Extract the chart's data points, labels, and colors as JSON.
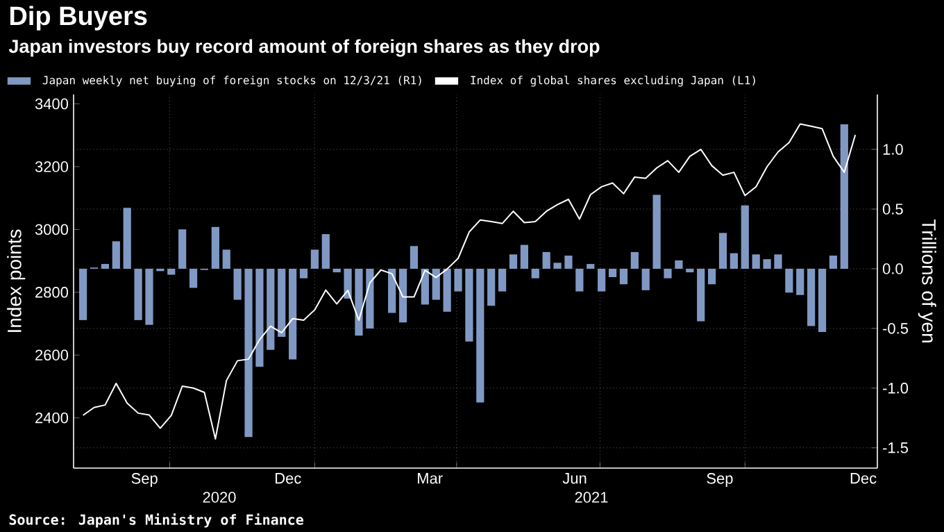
{
  "chart_data": {
    "type": "bar",
    "title": "Dip Buyers",
    "subtitle": "Japan investors buy record amount of foreign shares as they drop",
    "ylabel": "Index points",
    "y2label": "Trillions of yen",
    "x": [
      "2020-08-07",
      "2020-08-14",
      "2020-08-21",
      "2020-08-28",
      "2020-09-04",
      "2020-09-11",
      "2020-09-18",
      "2020-09-25",
      "2020-10-02",
      "2020-10-09",
      "2020-10-16",
      "2020-10-23",
      "2020-10-30",
      "2020-11-06",
      "2020-11-13",
      "2020-11-20",
      "2020-11-27",
      "2020-12-04",
      "2020-12-11",
      "2020-12-18",
      "2020-12-25",
      "2021-01-01",
      "2021-01-08",
      "2021-01-15",
      "2021-01-22",
      "2021-01-29",
      "2021-02-05",
      "2021-02-12",
      "2021-02-19",
      "2021-02-26",
      "2021-03-05",
      "2021-03-12",
      "2021-03-19",
      "2021-03-26",
      "2021-04-02",
      "2021-04-09",
      "2021-04-16",
      "2021-04-23",
      "2021-04-30",
      "2021-05-07",
      "2021-05-14",
      "2021-05-21",
      "2021-05-28",
      "2021-06-04",
      "2021-06-11",
      "2021-06-18",
      "2021-06-25",
      "2021-07-02",
      "2021-07-09",
      "2021-07-16",
      "2021-07-23",
      "2021-07-30",
      "2021-08-06",
      "2021-08-13",
      "2021-08-20",
      "2021-08-27",
      "2021-09-03",
      "2021-09-10",
      "2021-09-17",
      "2021-09-24",
      "2021-10-01",
      "2021-10-08",
      "2021-10-15",
      "2021-10-22",
      "2021-10-29",
      "2021-11-05",
      "2021-11-12",
      "2021-11-19",
      "2021-11-26",
      "2021-12-03"
    ],
    "series": [
      {
        "name": "Japan weekly net buying of foreign stocks on 12/3/21 (R1)",
        "axis": "y2",
        "color": "#8099c4",
        "values": [
          -0.43,
          0.01,
          0.04,
          0.23,
          0.51,
          -0.43,
          -0.47,
          -0.02,
          -0.05,
          0.33,
          -0.16,
          -0.01,
          0.35,
          0.16,
          -0.26,
          -1.41,
          -0.82,
          -0.68,
          -0.57,
          -0.76,
          -0.08,
          0.16,
          0.29,
          -0.03,
          -0.25,
          -0.56,
          -0.5,
          0.0,
          -0.37,
          -0.45,
          0.19,
          -0.3,
          -0.26,
          -0.36,
          -0.19,
          -0.61,
          -1.12,
          -0.31,
          -0.19,
          0.12,
          0.2,
          -0.08,
          0.14,
          0.05,
          0.11,
          -0.19,
          0.04,
          -0.19,
          -0.07,
          -0.13,
          0.14,
          -0.18,
          0.62,
          -0.08,
          0.07,
          -0.03,
          -0.44,
          -0.13,
          0.3,
          0.13,
          0.53,
          0.12,
          0.08,
          0.12,
          -0.2,
          -0.22,
          -0.48,
          -0.53,
          0.11,
          1.21
        ]
      },
      {
        "name": "Index of global shares excluding Japan (L1)",
        "type": "line",
        "color": "#ffffff",
        "x": [
          "2020-08-07",
          "2020-08-14",
          "2020-08-21",
          "2020-08-28",
          "2020-09-04",
          "2020-09-11",
          "2020-09-18",
          "2020-09-25",
          "2020-10-02",
          "2020-10-09",
          "2020-10-16",
          "2020-10-23",
          "2020-10-30",
          "2020-11-06",
          "2020-11-13",
          "2020-11-20",
          "2020-11-27",
          "2020-12-04",
          "2020-12-11",
          "2020-12-18",
          "2020-12-25",
          "2021-01-01",
          "2021-01-08",
          "2021-01-15",
          "2021-01-22",
          "2021-01-29",
          "2021-02-05",
          "2021-02-12",
          "2021-02-19",
          "2021-02-26",
          "2021-03-05",
          "2021-03-12",
          "2021-03-19",
          "2021-03-26",
          "2021-04-02",
          "2021-04-09",
          "2021-04-16",
          "2021-04-23",
          "2021-04-30",
          "2021-05-07",
          "2021-05-14",
          "2021-05-21",
          "2021-05-28",
          "2021-06-04",
          "2021-06-11",
          "2021-06-18",
          "2021-06-25",
          "2021-07-02",
          "2021-07-09",
          "2021-07-16",
          "2021-07-23",
          "2021-07-30",
          "2021-08-06",
          "2021-08-13",
          "2021-08-20",
          "2021-08-27",
          "2021-09-03",
          "2021-09-10",
          "2021-09-17",
          "2021-09-24",
          "2021-10-01",
          "2021-10-08",
          "2021-10-15",
          "2021-10-22",
          "2021-10-29",
          "2021-11-05",
          "2021-11-12",
          "2021-11-19",
          "2021-11-26",
          "2021-12-03",
          "2021-12-10"
        ],
        "values": [
          2408,
          2433,
          2441,
          2510,
          2447,
          2415,
          2409,
          2367,
          2408,
          2501,
          2495,
          2481,
          2333,
          2519,
          2582,
          2587,
          2649,
          2692,
          2671,
          2716,
          2711,
          2744,
          2807,
          2763,
          2806,
          2711,
          2830,
          2871,
          2859,
          2785,
          2785,
          2870,
          2847,
          2874,
          2908,
          2992,
          3030,
          3025,
          3019,
          3058,
          3022,
          3025,
          3058,
          3079,
          3096,
          3033,
          3111,
          3136,
          3148,
          3114,
          3167,
          3163,
          3196,
          3219,
          3182,
          3233,
          3255,
          3203,
          3173,
          3182,
          3108,
          3136,
          3200,
          3247,
          3277,
          3336,
          3329,
          3321,
          3233,
          3182,
          3301
        ]
      }
    ],
    "xlim": [
      "2020-08-01",
      "2021-12-24"
    ],
    "xticks": [
      {
        "value": "2020-10-01",
        "label": null
      },
      {
        "value": "2021-01-01",
        "label": null
      },
      {
        "value": "2021-04-01",
        "label": null
      },
      {
        "value": "2021-07-01",
        "label": null
      },
      {
        "value": "2021-10-01",
        "label": null
      },
      {
        "value": "2020-09-15",
        "label": "Sep"
      },
      {
        "value": "2020-12-15",
        "label": "Dec"
      },
      {
        "value": "2021-03-15",
        "label": "Mar"
      },
      {
        "value": "2021-06-15",
        "label": "Jun"
      },
      {
        "value": "2021-09-15",
        "label": "Sep"
      },
      {
        "value": "2021-12-15",
        "label": "Dec"
      }
    ],
    "ylim": [
      2240,
      3430
    ],
    "yticks": [
      2400,
      2600,
      2800,
      3000,
      3200,
      3400
    ],
    "y2lim": [
      -1.67,
      1.46
    ],
    "y2ticks": [
      {
        "value": -1.5,
        "label": "-1.5"
      },
      {
        "value": -1.0,
        "label": "-1.0"
      },
      {
        "value": -0.5,
        "label": "-0.5"
      },
      {
        "value": 0.0,
        "label": "0.0"
      },
      {
        "value": 0.5,
        "label": "0.5"
      },
      {
        "value": 1.0,
        "label": "1.0"
      }
    ],
    "grid": true,
    "legend": "top",
    "annotations": [
      "2020",
      "2021",
      "Source: Japan's Ministry of Finance"
    ]
  }
}
